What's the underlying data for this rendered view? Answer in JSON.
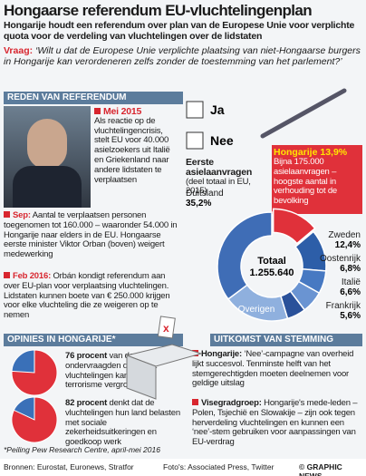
{
  "header": {
    "title": "Hongaarse referendum EU-vluchtelingenplan",
    "subtitle": "Hongarije houdt een referendum over plan van de Europese Unie voor verplichte quota voor de verdeling van vluchtelingen over de lidstaten",
    "question_label": "Vraag:",
    "question": "‘Wilt u dat de Europese Unie verplichte plaatsing van niet-Hongaarse burgers in Hongarije kan verordeneren zelfs zonder de toestemming van het parlement?’"
  },
  "background": {
    "heading": "REDEN VAN REFERENDUM",
    "events": [
      {
        "date": "Mei 2015",
        "text": "Als reactie op de vluchtelingencrisis, stelt EU voor 40.000 asielzoekers uit Italië en Griekenland naar andere lidstaten te verplaatsen"
      },
      {
        "date": "Sep:",
        "text": "Aantal te verplaatsen personen toegenomen tot 160.000 – waaronder 54.000 in Hongarije naar elders in de EU. Hongaarse eerste minister Viktor Orban (boven) weigert medewerking"
      },
      {
        "date": "Feb 2016:",
        "text": "Orbán kondigt referendum aan over EU-plan voor verplaatsing vluchtelingen. Lidstaten kunnen boete van € 250.000 krijgen voor elke vluchteling die ze weigeren op te nemen"
      }
    ]
  },
  "ballot": {
    "yes": "Ja",
    "no": "Nee"
  },
  "chart_data": [
    {
      "type": "donut",
      "title": "Eerste asielaanvragen",
      "subtitle": "(deel totaal in EU, 2015)",
      "center_label": "Totaal",
      "center_value": "1.255.640",
      "annotation": "Bijna 175.000 asielaanvragen – hoogste aantal in verhouding tot de bevolking",
      "categories": [
        "Hongarije",
        "Zweden",
        "Oostenrijk",
        "Italië",
        "Frankrijk",
        "Overigen",
        "Duitsland"
      ],
      "values": [
        13.9,
        12.4,
        6.8,
        6.6,
        5.6,
        19.5,
        35.2
      ],
      "value_labels": [
        "13,9%",
        "12,4%",
        "6,8%",
        "6,6%",
        "5,6%",
        null,
        "35,2%"
      ],
      "colors": [
        "#e0313a",
        "#2d5ea8",
        "#4779c2",
        "#6a94d2",
        "#2a519a",
        "#8fb0de",
        "#3f6db6"
      ]
    },
    {
      "type": "pie",
      "values": [
        76
      ],
      "value_labels": [
        "76 procent"
      ],
      "colors": [
        "#e0313a",
        "#3a70b8"
      ],
      "description": "van de ondervraagden denkt dat vluchtelingen kans op terrorisme vergroten"
    },
    {
      "type": "pie",
      "values": [
        82
      ],
      "value_labels": [
        "82 procent"
      ],
      "colors": [
        "#e0313a",
        "#3a70b8"
      ],
      "description": "denkt dat de vluchtelingen hun land belasten met sociale zekerheidsuitkeringen en goedkoop werk"
    }
  ],
  "opinions": {
    "heading": "OPINIES IN HONGARIJE*",
    "footnote": "*Peiling Pew Research Centre, april-mei 2016"
  },
  "outcome": {
    "heading": "UITKOMST VAN STEMMING",
    "items": [
      {
        "label": "Hongarije:",
        "text": "‘Nee’-campagne van overheid lijkt succesvol. Tenminste helft van het stemgerechtigden moeten deelnemen voor geldige uitslag"
      },
      {
        "label": "Visegradgroep:",
        "text": "Hongarije's mede-leden – Polen, Tsjechië en Slowakije – zijn ook tegen herverdeling vluchtelingen en kunnen een ‘nee’-stem gebruiken voor aanpassingen van EU-verdrag"
      }
    ]
  },
  "footer": {
    "sources": "Bronnen: Eurostat, Euronews, Stratfor",
    "photos": "Foto's: Associated Press, Twitter",
    "credit": "© GRAPHIC NEWS"
  }
}
